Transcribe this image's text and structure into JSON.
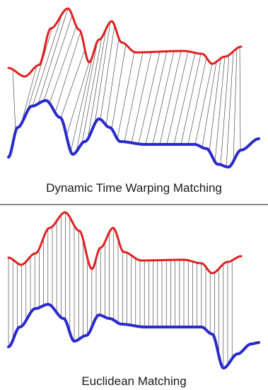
{
  "panels": [
    {
      "caption": "Dynamic Time Warping Matching",
      "method": "dtw"
    },
    {
      "caption": "Euclidean Matching",
      "method": "euclidean"
    }
  ],
  "colors": {
    "upper_series": "#e02020",
    "lower_series": "#2a2acd",
    "connector": "#333333",
    "divider": "#666666"
  }
}
